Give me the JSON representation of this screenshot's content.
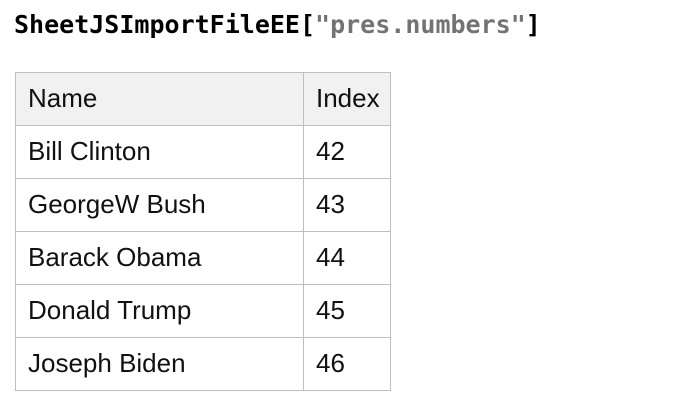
{
  "title": {
    "prefix": "SheetJSImportFileEE[",
    "filename": "\"pres.numbers\"",
    "suffix": "]"
  },
  "table": {
    "columns": [
      "Name",
      "Index"
    ],
    "rows": [
      {
        "name": "Bill Clinton",
        "index": "42"
      },
      {
        "name": "GeorgeW Bush",
        "index": "43"
      },
      {
        "name": "Barack Obama",
        "index": "44"
      },
      {
        "name": "Donald Trump",
        "index": "45"
      },
      {
        "name": "Joseph Biden",
        "index": "46"
      }
    ]
  },
  "colors": {
    "title_text": "#000000",
    "filename_text": "#737373",
    "table_border": "#bfbfbf",
    "header_bg": "#f1f1f1",
    "row_bg": "#ffffff",
    "cell_text": "#111111"
  }
}
